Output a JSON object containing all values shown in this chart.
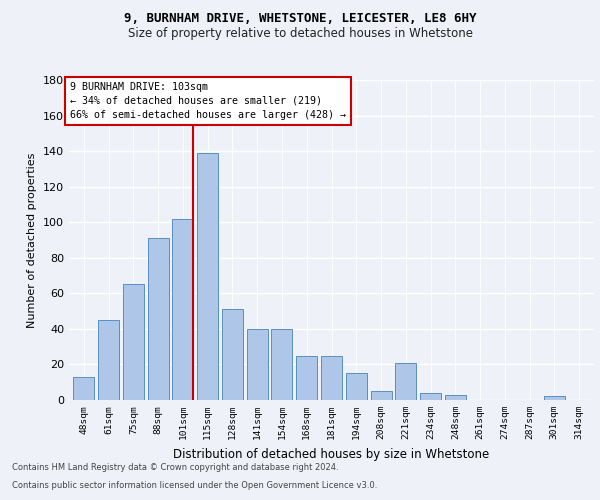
{
  "title1": "9, BURNHAM DRIVE, WHETSTONE, LEICESTER, LE8 6HY",
  "title2": "Size of property relative to detached houses in Whetstone",
  "xlabel": "Distribution of detached houses by size in Whetstone",
  "ylabel": "Number of detached properties",
  "categories": [
    "48sqm",
    "61sqm",
    "75sqm",
    "88sqm",
    "101sqm",
    "115sqm",
    "128sqm",
    "141sqm",
    "154sqm",
    "168sqm",
    "181sqm",
    "194sqm",
    "208sqm",
    "221sqm",
    "234sqm",
    "248sqm",
    "261sqm",
    "274sqm",
    "287sqm",
    "301sqm",
    "314sqm"
  ],
  "values": [
    13,
    45,
    65,
    91,
    102,
    139,
    51,
    40,
    40,
    25,
    25,
    15,
    5,
    21,
    4,
    3,
    0,
    0,
    0,
    2,
    0
  ],
  "bar_color": "#aec6e8",
  "bar_edge_color": "#5a8fc0",
  "property_label": "9 BURNHAM DRIVE: 103sqm",
  "annotation_line1": "← 34% of detached houses are smaller (219)",
  "annotation_line2": "66% of semi-detached houses are larger (428) →",
  "vline_x_index": 4,
  "vline_color": "#cc0000",
  "ylim": [
    0,
    180
  ],
  "yticks": [
    0,
    20,
    40,
    60,
    80,
    100,
    120,
    140,
    160,
    180
  ],
  "footer1": "Contains HM Land Registry data © Crown copyright and database right 2024.",
  "footer2": "Contains public sector information licensed under the Open Government Licence v3.0.",
  "background_color": "#eef2f8",
  "plot_bg_color": "#eef2f8"
}
